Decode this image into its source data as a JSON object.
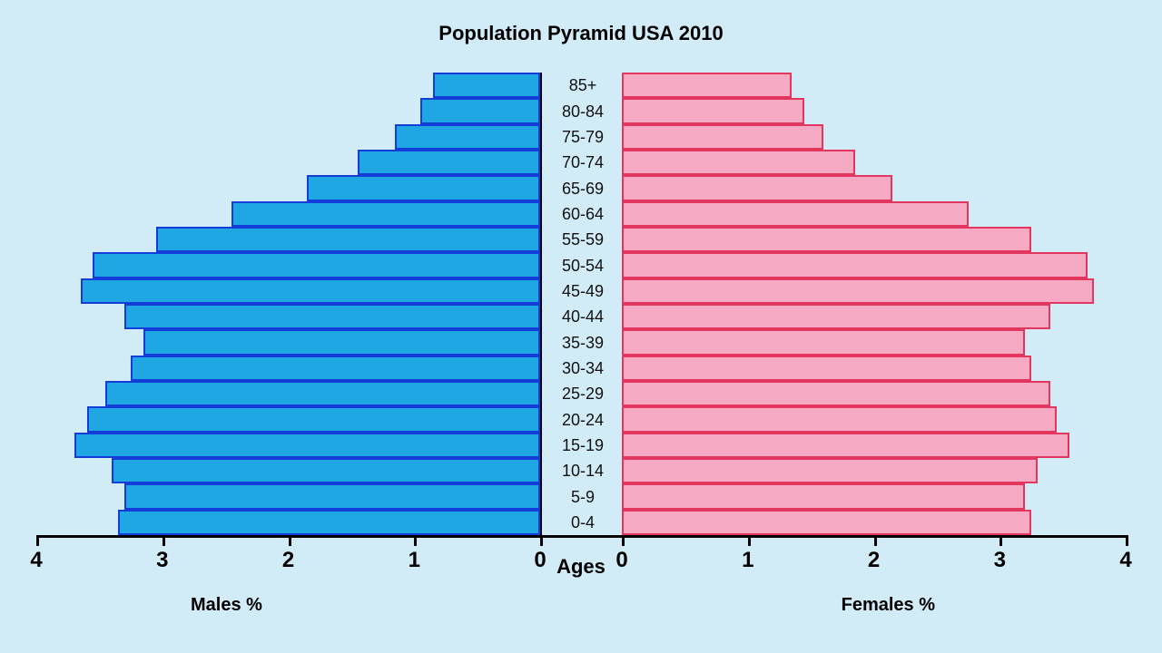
{
  "title": {
    "text": "Population Pyramid USA 2010",
    "fontsize": 22
  },
  "background_color": "#d2ecf7",
  "chart": {
    "type": "population-pyramid",
    "age_groups": [
      "85+",
      "80-84",
      "75-79",
      "70-74",
      "65-69",
      "60-64",
      "55-59",
      "50-54",
      "45-49",
      "40-44",
      "35-39",
      "30-34",
      "25-29",
      "20-24",
      "15-19",
      "10-14",
      "5-9",
      "0-4"
    ],
    "male_values": [
      0.85,
      0.95,
      1.15,
      1.45,
      1.85,
      2.45,
      3.05,
      3.55,
      3.65,
      3.3,
      3.15,
      3.25,
      3.45,
      3.6,
      3.7,
      3.4,
      3.3,
      3.35
    ],
    "female_values": [
      1.35,
      1.45,
      1.6,
      1.85,
      2.15,
      2.75,
      3.25,
      3.7,
      3.75,
      3.4,
      3.2,
      3.25,
      3.4,
      3.45,
      3.55,
      3.3,
      3.2,
      3.25
    ],
    "male_fill": "#1fa7e3",
    "male_border": "#143cd9",
    "female_fill": "#f6a9c3",
    "female_border": "#e2365f",
    "bar_border_width": 2,
    "age_label_fontsize": 18,
    "age_label_color": "#111111",
    "center_col_border": "#000000",
    "center_col_width_pct": 7.5
  },
  "axis": {
    "min": 0,
    "max": 4,
    "ticks": [
      0,
      1,
      2,
      3,
      4
    ],
    "label_fontsize": 24,
    "line_color": "#000000",
    "center_label": "Ages",
    "male_label": "Males %",
    "female_label": "Females %"
  }
}
